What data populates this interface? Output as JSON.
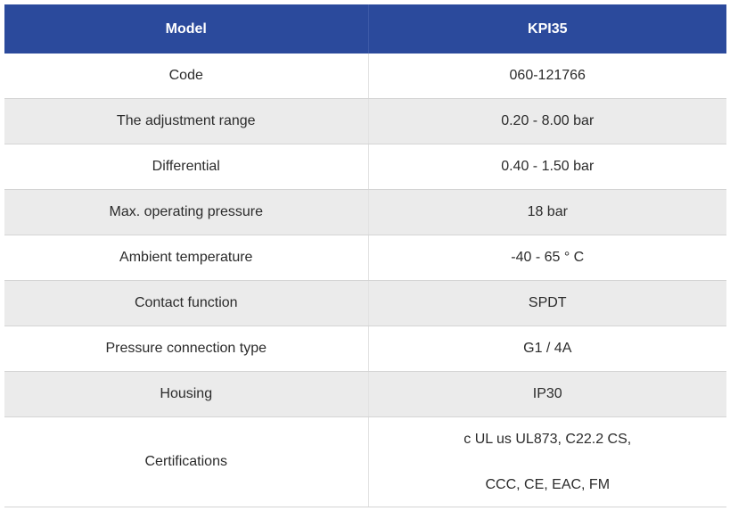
{
  "header": {
    "col1": "Model",
    "col2": "KPI35"
  },
  "rows": [
    {
      "label": "Code",
      "value": "060-121766"
    },
    {
      "label": "The adjustment range",
      "value": "0.20 - 8.00 bar"
    },
    {
      "label": "Differential",
      "value": "0.40 - 1.50 bar"
    },
    {
      "label": "Max. operating pressure",
      "value": "18 bar"
    },
    {
      "label": "Ambient temperature",
      "value": "-40 - 65 ° C"
    },
    {
      "label": "Contact function",
      "value": "SPDT"
    },
    {
      "label": "Pressure connection type",
      "value": "G1 / 4A"
    },
    {
      "label": "Housing",
      "value": "IP30"
    }
  ],
  "certifications": {
    "label": "Certifications",
    "lines": [
      "c UL us UL873, C22.2 CS,",
      "CCC, CE, EAC, FM"
    ]
  },
  "colors": {
    "header_bg": "#2b4a9c",
    "header_text": "#ffffff",
    "shade_row": "#ebebeb"
  }
}
